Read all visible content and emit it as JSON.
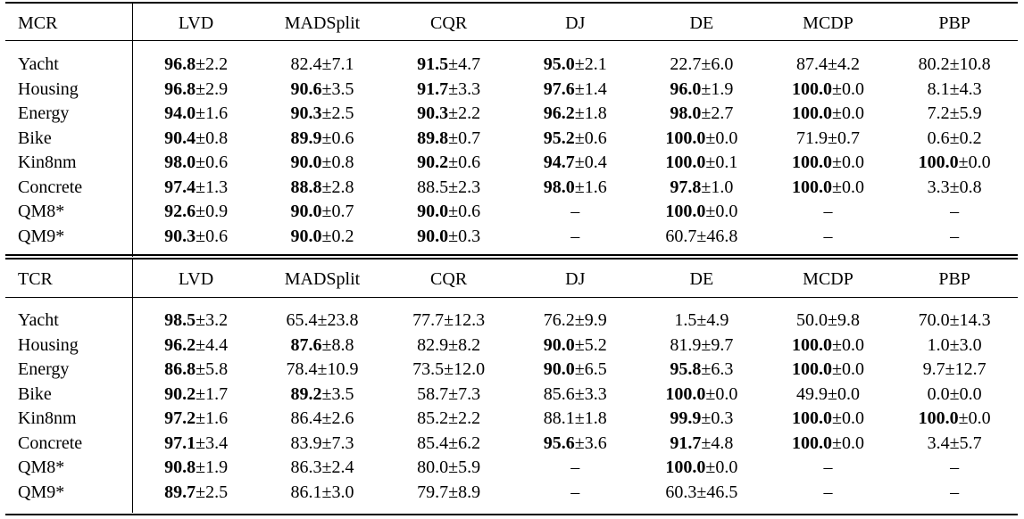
{
  "sections": [
    {
      "metric": "MCR",
      "columns": [
        "LVD",
        "MADSplit",
        "CQR",
        "DJ",
        "DE",
        "MCDP",
        "PBP"
      ],
      "rows": [
        {
          "dataset": "Yacht",
          "cells": [
            {
              "m": "96.8",
              "s": "2.2",
              "b": true
            },
            {
              "m": "82.4",
              "s": "7.1",
              "b": false
            },
            {
              "m": "91.5",
              "s": "4.7",
              "b": true
            },
            {
              "m": "95.0",
              "s": "2.1",
              "b": true
            },
            {
              "m": "22.7",
              "s": "6.0",
              "b": false
            },
            {
              "m": "87.4",
              "s": "4.2",
              "b": false
            },
            {
              "m": "80.2",
              "s": "10.8",
              "b": false
            }
          ]
        },
        {
          "dataset": "Housing",
          "cells": [
            {
              "m": "96.8",
              "s": "2.9",
              "b": true
            },
            {
              "m": "90.6",
              "s": "3.5",
              "b": true
            },
            {
              "m": "91.7",
              "s": "3.3",
              "b": true
            },
            {
              "m": "97.6",
              "s": "1.4",
              "b": true
            },
            {
              "m": "96.0",
              "s": "1.9",
              "b": true
            },
            {
              "m": "100.0",
              "s": "0.0",
              "b": true
            },
            {
              "m": "8.1",
              "s": "4.3",
              "b": false
            }
          ]
        },
        {
          "dataset": "Energy",
          "cells": [
            {
              "m": "94.0",
              "s": "1.6",
              "b": true
            },
            {
              "m": "90.3",
              "s": "2.5",
              "b": true
            },
            {
              "m": "90.3",
              "s": "2.2",
              "b": true
            },
            {
              "m": "96.2",
              "s": "1.8",
              "b": true
            },
            {
              "m": "98.0",
              "s": "2.7",
              "b": true
            },
            {
              "m": "100.0",
              "s": "0.0",
              "b": true
            },
            {
              "m": "7.2",
              "s": "5.9",
              "b": false
            }
          ]
        },
        {
          "dataset": "Bike",
          "cells": [
            {
              "m": "90.4",
              "s": "0.8",
              "b": true
            },
            {
              "m": "89.9",
              "s": "0.6",
              "b": true
            },
            {
              "m": "89.8",
              "s": "0.7",
              "b": true
            },
            {
              "m": "95.2",
              "s": "0.6",
              "b": true
            },
            {
              "m": "100.0",
              "s": "0.0",
              "b": true
            },
            {
              "m": "71.9",
              "s": "0.7",
              "b": false
            },
            {
              "m": "0.6",
              "s": "0.2",
              "b": false
            }
          ]
        },
        {
          "dataset": "Kin8nm",
          "cells": [
            {
              "m": "98.0",
              "s": "0.6",
              "b": true
            },
            {
              "m": "90.0",
              "s": "0.8",
              "b": true
            },
            {
              "m": "90.2",
              "s": "0.6",
              "b": true
            },
            {
              "m": "94.7",
              "s": "0.4",
              "b": true
            },
            {
              "m": "100.0",
              "s": "0.1",
              "b": true
            },
            {
              "m": "100.0",
              "s": "0.0",
              "b": true
            },
            {
              "m": "100.0",
              "s": "0.0",
              "b": true
            }
          ]
        },
        {
          "dataset": "Concrete",
          "cells": [
            {
              "m": "97.4",
              "s": "1.3",
              "b": true
            },
            {
              "m": "88.8",
              "s": "2.8",
              "b": true
            },
            {
              "m": "88.5",
              "s": "2.3",
              "b": false
            },
            {
              "m": "98.0",
              "s": "1.6",
              "b": true
            },
            {
              "m": "97.8",
              "s": "1.0",
              "b": true
            },
            {
              "m": "100.0",
              "s": "0.0",
              "b": true
            },
            {
              "m": "3.3",
              "s": "0.8",
              "b": false
            }
          ]
        },
        {
          "dataset": "QM8*",
          "cells": [
            {
              "m": "92.6",
              "s": "0.9",
              "b": true
            },
            {
              "m": "90.0",
              "s": "0.7",
              "b": true
            },
            {
              "m": "90.0",
              "s": "0.6",
              "b": true
            },
            {
              "dash": "–"
            },
            {
              "m": "100.0",
              "s": "0.0",
              "b": true
            },
            {
              "dash": "–"
            },
            {
              "dash": "–"
            }
          ]
        },
        {
          "dataset": "QM9*",
          "cells": [
            {
              "m": "90.3",
              "s": "0.6",
              "b": true
            },
            {
              "m": "90.0",
              "s": "0.2",
              "b": true
            },
            {
              "m": "90.0",
              "s": "0.3",
              "b": true
            },
            {
              "dash": "–"
            },
            {
              "m": "60.7",
              "s": "46.8",
              "b": false
            },
            {
              "dash": "–"
            },
            {
              "dash": "–"
            }
          ]
        }
      ]
    },
    {
      "metric": "TCR",
      "columns": [
        "LVD",
        "MADSplit",
        "CQR",
        "DJ",
        "DE",
        "MCDP",
        "PBP"
      ],
      "rows": [
        {
          "dataset": "Yacht",
          "cells": [
            {
              "m": "98.5",
              "s": "3.2",
              "b": true
            },
            {
              "m": "65.4",
              "s": "23.8",
              "b": false
            },
            {
              "m": "77.7",
              "s": "12.3",
              "b": false
            },
            {
              "m": "76.2",
              "s": "9.9",
              "b": false
            },
            {
              "m": "1.5",
              "s": "4.9",
              "b": false
            },
            {
              "m": "50.0",
              "s": "9.8",
              "b": false
            },
            {
              "m": "70.0",
              "s": "14.3",
              "b": false
            }
          ]
        },
        {
          "dataset": "Housing",
          "cells": [
            {
              "m": "96.2",
              "s": "4.4",
              "b": true
            },
            {
              "m": "87.6",
              "s": "8.8",
              "b": true
            },
            {
              "m": "82.9",
              "s": "8.2",
              "b": false
            },
            {
              "m": "90.0",
              "s": "5.2",
              "b": true
            },
            {
              "m": "81.9",
              "s": "9.7",
              "b": false
            },
            {
              "m": "100.0",
              "s": "0.0",
              "b": true
            },
            {
              "m": "1.0",
              "s": "3.0",
              "b": false
            }
          ]
        },
        {
          "dataset": "Energy",
          "cells": [
            {
              "m": "86.8",
              "s": "5.8",
              "b": true
            },
            {
              "m": "78.4",
              "s": "10.9",
              "b": false
            },
            {
              "m": "73.5",
              "s": "12.0",
              "b": false
            },
            {
              "m": "90.0",
              "s": "6.5",
              "b": true
            },
            {
              "m": "95.8",
              "s": "6.3",
              "b": true
            },
            {
              "m": "100.0",
              "s": "0.0",
              "b": true
            },
            {
              "m": "9.7",
              "s": "12.7",
              "b": false
            }
          ]
        },
        {
          "dataset": "Bike",
          "cells": [
            {
              "m": "90.2",
              "s": "1.7",
              "b": true
            },
            {
              "m": "89.2",
              "s": "3.5",
              "b": true
            },
            {
              "m": "58.7",
              "s": "7.3",
              "b": false
            },
            {
              "m": "85.6",
              "s": "3.3",
              "b": false
            },
            {
              "m": "100.0",
              "s": "0.0",
              "b": true
            },
            {
              "m": "49.9",
              "s": "0.0",
              "b": false
            },
            {
              "m": "0.0",
              "s": "0.0",
              "b": false
            }
          ]
        },
        {
          "dataset": "Kin8nm",
          "cells": [
            {
              "m": "97.2",
              "s": "1.6",
              "b": true
            },
            {
              "m": "86.4",
              "s": "2.6",
              "b": false
            },
            {
              "m": "85.2",
              "s": "2.2",
              "b": false
            },
            {
              "m": "88.1",
              "s": "1.8",
              "b": false
            },
            {
              "m": "99.9",
              "s": "0.3",
              "b": true
            },
            {
              "m": "100.0",
              "s": "0.0",
              "b": true
            },
            {
              "m": "100.0",
              "s": "0.0",
              "b": true
            }
          ]
        },
        {
          "dataset": "Concrete",
          "cells": [
            {
              "m": "97.1",
              "s": "3.4",
              "b": true
            },
            {
              "m": "83.9",
              "s": "7.3",
              "b": false
            },
            {
              "m": "85.4",
              "s": "6.2",
              "b": false
            },
            {
              "m": "95.6",
              "s": "3.6",
              "b": true
            },
            {
              "m": "91.7",
              "s": "4.8",
              "b": true
            },
            {
              "m": "100.0",
              "s": "0.0",
              "b": true
            },
            {
              "m": "3.4",
              "s": "5.7",
              "b": false
            }
          ]
        },
        {
          "dataset": "QM8*",
          "cells": [
            {
              "m": "90.8",
              "s": "1.9",
              "b": true
            },
            {
              "m": "86.3",
              "s": "2.4",
              "b": false
            },
            {
              "m": "80.0",
              "s": "5.9",
              "b": false
            },
            {
              "dash": "–"
            },
            {
              "m": "100.0",
              "s": "0.0",
              "b": true
            },
            {
              "dash": "–"
            },
            {
              "dash": "–"
            }
          ]
        },
        {
          "dataset": "QM9*",
          "cells": [
            {
              "m": "89.7",
              "s": "2.5",
              "b": true
            },
            {
              "m": "86.1",
              "s": "3.0",
              "b": false
            },
            {
              "m": "79.7",
              "s": "8.9",
              "b": false
            },
            {
              "dash": "–"
            },
            {
              "m": "60.3",
              "s": "46.5",
              "b": false
            },
            {
              "dash": "–"
            },
            {
              "dash": "–"
            }
          ]
        }
      ]
    }
  ]
}
